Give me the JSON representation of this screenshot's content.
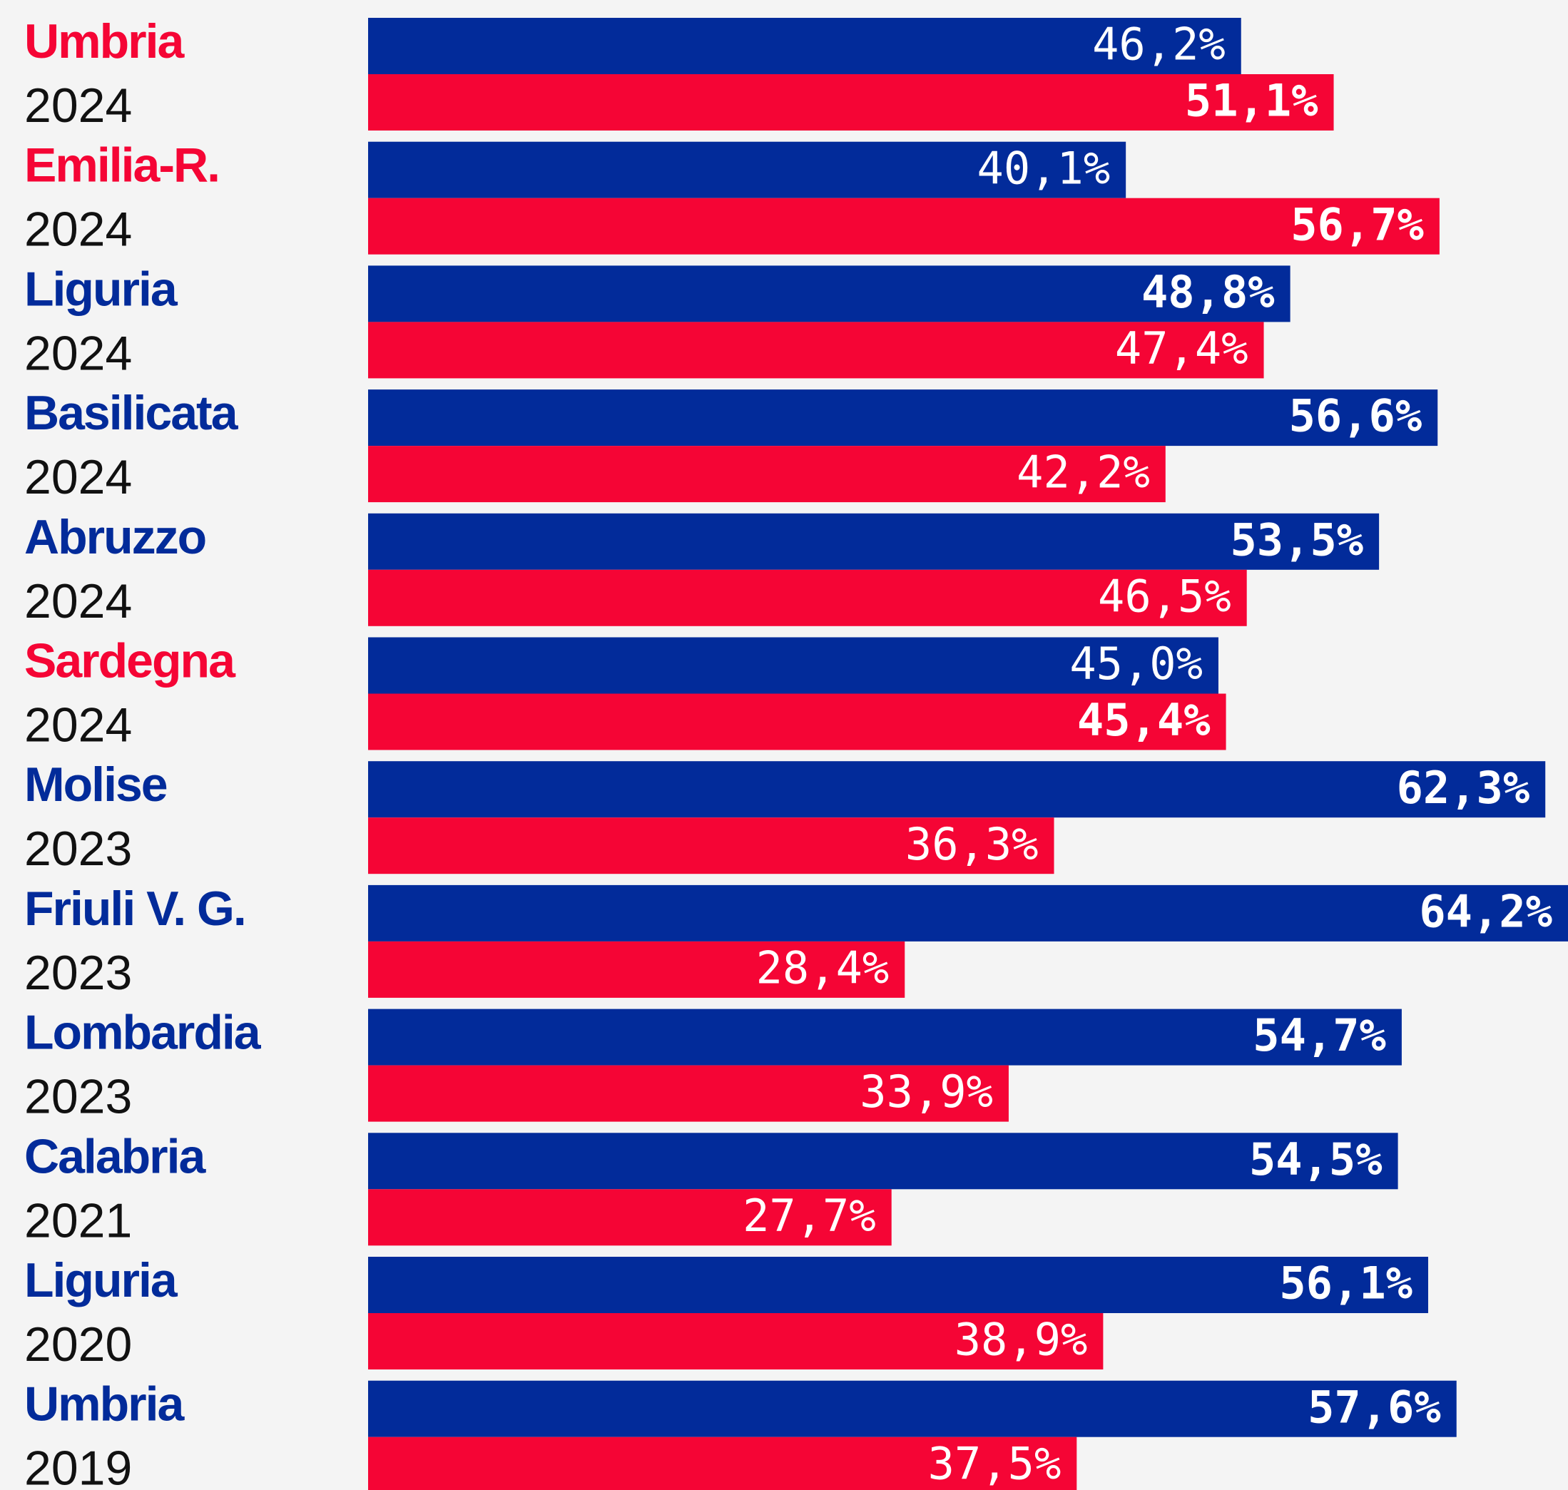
{
  "chart_data": {
    "type": "bar",
    "orientation": "horizontal",
    "categories": [
      "Umbria",
      "Emilia-R.",
      "Liguria",
      "Basilicata",
      "Abruzzo",
      "Sardegna",
      "Molise",
      "Friuli V. G.",
      "Lombardia",
      "Calabria",
      "Liguria",
      "Umbria"
    ],
    "years": [
      "2024",
      "2024",
      "2024",
      "2024",
      "2024",
      "2024",
      "2023",
      "2023",
      "2023",
      "2021",
      "2020",
      "2019"
    ],
    "series": [
      {
        "color": "#022b9a",
        "values": [
          46.2,
          40.1,
          48.8,
          56.6,
          53.5,
          45.0,
          62.3,
          64.2,
          54.7,
          54.5,
          56.1,
          57.6
        ],
        "value_labels": [
          "46,2%",
          "40,1%",
          "48,8%",
          "56,6%",
          "53,5%",
          "45,0%",
          "62,3%",
          "64,2%",
          "54,7%",
          "54,5%",
          "56,1%",
          "57,6%"
        ]
      },
      {
        "color": "#f50535",
        "values": [
          51.1,
          56.7,
          47.4,
          42.2,
          46.5,
          45.4,
          36.3,
          28.4,
          33.9,
          27.7,
          38.9,
          37.5
        ],
        "value_labels": [
          "51,1%",
          "56,7%",
          "47,4%",
          "42,2%",
          "46,5%",
          "45,4%",
          "36,3%",
          "28,4%",
          "33,9%",
          "27,7%",
          "38,9%",
          "37,5%"
        ]
      }
    ],
    "xlim": [
      0,
      63.5
    ]
  }
}
